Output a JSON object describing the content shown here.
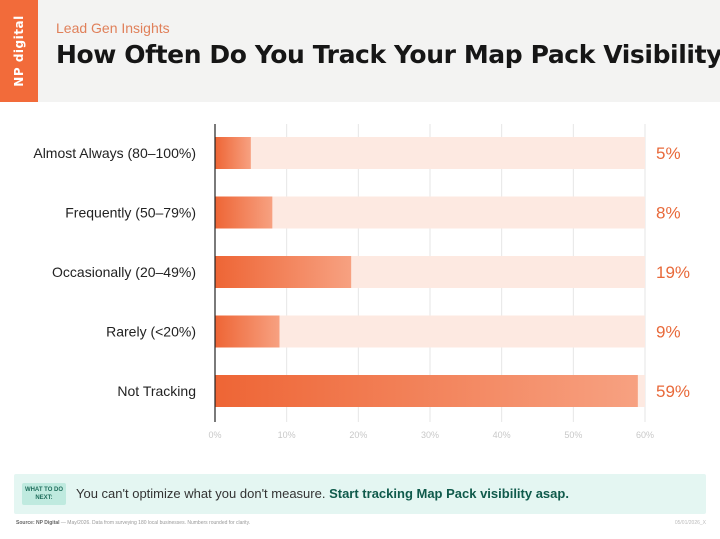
{
  "header": {
    "logo_text": "NP digital",
    "subtitle": "Lead Gen Insights",
    "title": "How Often Do You Track Your Map Pack Visibility?"
  },
  "colors": {
    "accent": "#f26b3a",
    "bar_track": "#fde9e1",
    "callout_bg": "#e4f6f2"
  },
  "chart_data": {
    "type": "bar",
    "orientation": "horizontal",
    "title": "How Often Do You Track Your Map Pack Visibility?",
    "categories": [
      "Almost Always (80–100%)",
      "Frequently (50–79%)",
      "Occasionally (20–49%)",
      "Rarely (<20%)",
      "Not Tracking"
    ],
    "values": [
      5,
      8,
      19,
      9,
      59
    ],
    "value_labels": [
      "5%",
      "8%",
      "19%",
      "9%",
      "59%"
    ],
    "xlim": [
      0,
      60
    ],
    "x_ticks": [
      "0%",
      "10%",
      "20%",
      "30%",
      "40%",
      "50%",
      "60%"
    ],
    "grid": true,
    "legend": "none"
  },
  "callout": {
    "tag": "WHAT TO DO NEXT:",
    "text": "You can't optimize what you don't measure. ",
    "emphasis": "Start tracking Map Pack visibility asap."
  },
  "footer": {
    "source_label": "Source: NP Digital",
    "source_text": " — May/2026. Data from surveying 180 local businesses. Numbers rounded for clarity.",
    "id": "05/01/2026_X"
  }
}
